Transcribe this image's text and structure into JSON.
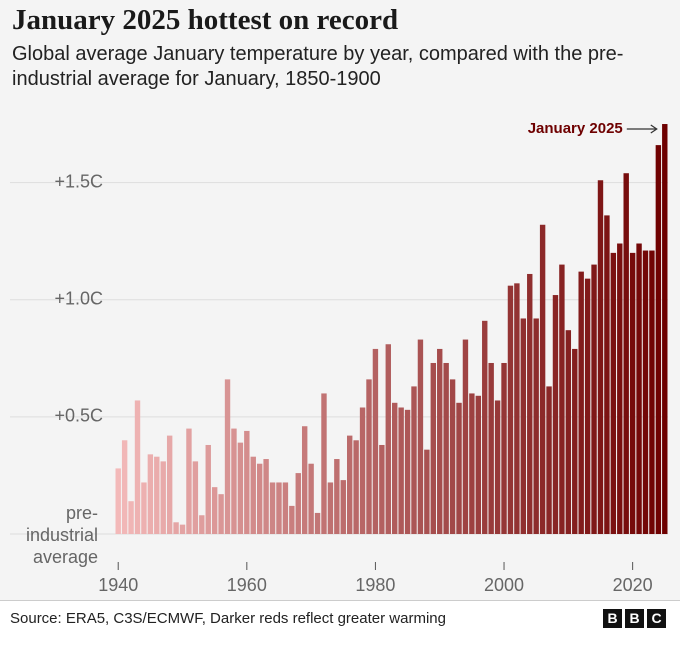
{
  "chart_data": {
    "type": "bar",
    "title": "January 2025 hottest on record",
    "subtitle": "Global average January temperature by year, compared with the pre-industrial average for January, 1850-1900",
    "annotation": "January 2025",
    "source": "Source: ERA5, C3S/ECMWF, Darker reds reflect greater warming",
    "logo": [
      "B",
      "B",
      "C"
    ],
    "x": [
      1940,
      1941,
      1942,
      1943,
      1944,
      1945,
      1946,
      1947,
      1948,
      1949,
      1950,
      1951,
      1952,
      1953,
      1954,
      1955,
      1956,
      1957,
      1958,
      1959,
      1960,
      1961,
      1962,
      1963,
      1964,
      1965,
      1966,
      1967,
      1968,
      1969,
      1970,
      1971,
      1972,
      1973,
      1974,
      1975,
      1976,
      1977,
      1978,
      1979,
      1980,
      1981,
      1982,
      1983,
      1984,
      1985,
      1986,
      1987,
      1988,
      1989,
      1990,
      1991,
      1992,
      1993,
      1994,
      1995,
      1996,
      1997,
      1998,
      1999,
      2000,
      2001,
      2002,
      2003,
      2004,
      2005,
      2006,
      2007,
      2008,
      2009,
      2010,
      2011,
      2012,
      2013,
      2014,
      2015,
      2016,
      2017,
      2018,
      2019,
      2020,
      2021,
      2022,
      2023,
      2024,
      2025
    ],
    "values": [
      0.28,
      0.4,
      0.14,
      0.57,
      0.22,
      0.34,
      0.33,
      0.31,
      0.42,
      0.05,
      0.04,
      0.45,
      0.31,
      0.08,
      0.38,
      0.2,
      0.17,
      0.66,
      0.45,
      0.39,
      0.44,
      0.33,
      0.3,
      0.32,
      0.22,
      0.22,
      0.22,
      0.12,
      0.26,
      0.46,
      0.3,
      0.09,
      0.6,
      0.22,
      0.32,
      0.23,
      0.42,
      0.4,
      0.54,
      0.66,
      0.79,
      0.38,
      0.81,
      0.56,
      0.54,
      0.53,
      0.63,
      0.83,
      0.36,
      0.73,
      0.79,
      0.73,
      0.66,
      0.56,
      0.83,
      0.6,
      0.59,
      0.91,
      0.73,
      0.57,
      0.73,
      1.06,
      1.07,
      0.92,
      1.11,
      0.92,
      1.32,
      0.63,
      1.02,
      1.15,
      0.87,
      0.79,
      1.12,
      1.09,
      1.15,
      1.51,
      1.36,
      1.2,
      1.24,
      1.54,
      1.2,
      1.24,
      1.21,
      1.21,
      1.66,
      1.75
    ],
    "colors": [
      "#f3b9b9",
      "#6e0000"
    ],
    "xlim": [
      1939.5,
      2025.5
    ],
    "xticks": [
      1940,
      1960,
      1980,
      2000,
      2020
    ],
    "ylim": [
      0,
      1.78
    ],
    "yticks": [
      {
        "value": 0,
        "label": "pre-industrial average"
      },
      {
        "value": 0.5,
        "label": "+0.5C"
      },
      {
        "value": 1.0,
        "label": "+1.0C"
      },
      {
        "value": 1.5,
        "label": "+1.5C"
      }
    ],
    "grid": true
  }
}
